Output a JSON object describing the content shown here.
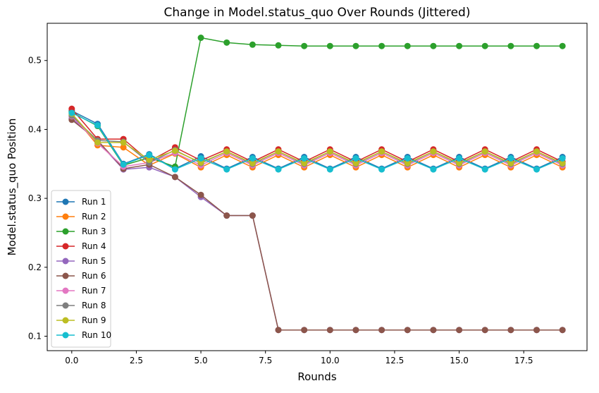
{
  "chart_data": {
    "type": "line",
    "title": "Change in Model.status_quo Over Rounds (Jittered)",
    "xlabel": "Rounds",
    "ylabel": "Model.status_quo Position",
    "xlim": [
      -0.95,
      19.95
    ],
    "ylim": [
      0.079,
      0.554
    ],
    "xticks": [
      0.0,
      2.5,
      5.0,
      7.5,
      10.0,
      12.5,
      15.0,
      17.5
    ],
    "xtick_labels": [
      "0.0",
      "2.5",
      "5.0",
      "7.5",
      "10.0",
      "12.5",
      "15.0",
      "17.5"
    ],
    "yticks": [
      0.1,
      0.2,
      0.3,
      0.4,
      0.5
    ],
    "ytick_labels": [
      "0.1",
      "0.2",
      "0.3",
      "0.4",
      "0.5"
    ],
    "grid": false,
    "legend_position": "lower-left",
    "x": [
      0,
      1,
      2,
      3,
      4,
      5,
      6,
      7,
      8,
      9,
      10,
      11,
      12,
      13,
      14,
      15,
      16,
      17,
      18,
      19
    ],
    "series": [
      {
        "name": "Run 1",
        "color": "#1f77b4",
        "values": [
          0.427,
          0.408,
          0.35,
          0.364,
          0.343,
          0.361,
          0.343,
          0.36,
          0.343,
          0.36,
          0.343,
          0.36,
          0.343,
          0.36,
          0.343,
          0.36,
          0.343,
          0.36,
          0.343,
          0.36
        ]
      },
      {
        "name": "Run 2",
        "color": "#ff7f0e",
        "values": [
          0.422,
          0.377,
          0.374,
          0.348,
          0.365,
          0.345,
          0.363,
          0.345,
          0.363,
          0.345,
          0.363,
          0.345,
          0.363,
          0.345,
          0.363,
          0.345,
          0.363,
          0.345,
          0.363,
          0.345
        ]
      },
      {
        "name": "Run 3",
        "color": "#2ca02c",
        "values": [
          0.425,
          0.405,
          0.348,
          0.359,
          0.346,
          0.533,
          0.526,
          0.523,
          0.522,
          0.521,
          0.521,
          0.521,
          0.521,
          0.521,
          0.521,
          0.521,
          0.521,
          0.521,
          0.521,
          0.521
        ]
      },
      {
        "name": "Run 4",
        "color": "#d62728",
        "values": [
          0.43,
          0.386,
          0.386,
          0.354,
          0.374,
          0.355,
          0.371,
          0.353,
          0.371,
          0.353,
          0.371,
          0.353,
          0.371,
          0.353,
          0.371,
          0.353,
          0.371,
          0.353,
          0.371,
          0.353
        ]
      },
      {
        "name": "Run 5",
        "color": "#9467bd",
        "values": [
          0.416,
          0.383,
          0.342,
          0.345,
          0.331,
          0.302,
          0.275,
          0.275,
          0.109,
          0.109,
          0.109,
          0.109,
          0.109,
          0.109,
          0.109,
          0.109,
          0.109,
          0.109,
          0.109,
          0.109
        ]
      },
      {
        "name": "Run 6",
        "color": "#8c564b",
        "values": [
          0.414,
          0.384,
          0.343,
          0.349,
          0.331,
          0.305,
          0.275,
          0.275,
          0.109,
          0.109,
          0.109,
          0.109,
          0.109,
          0.109,
          0.109,
          0.109,
          0.109,
          0.109,
          0.109,
          0.109
        ]
      },
      {
        "name": "Run 7",
        "color": "#e377c2",
        "values": [
          0.419,
          0.38,
          0.346,
          0.352,
          0.366,
          0.348,
          0.366,
          0.348,
          0.366,
          0.348,
          0.366,
          0.348,
          0.366,
          0.348,
          0.366,
          0.348,
          0.366,
          0.348,
          0.366,
          0.348
        ]
      },
      {
        "name": "Run 8",
        "color": "#7f7f7f",
        "values": [
          0.42,
          0.384,
          0.382,
          0.352,
          0.37,
          0.351,
          0.368,
          0.35,
          0.368,
          0.35,
          0.368,
          0.35,
          0.368,
          0.35,
          0.368,
          0.35,
          0.368,
          0.35,
          0.368,
          0.35
        ]
      },
      {
        "name": "Run 9",
        "color": "#bcbd22",
        "values": [
          0.423,
          0.381,
          0.381,
          0.356,
          0.369,
          0.352,
          0.368,
          0.351,
          0.368,
          0.351,
          0.368,
          0.351,
          0.368,
          0.351,
          0.368,
          0.351,
          0.368,
          0.351,
          0.368,
          0.351
        ]
      },
      {
        "name": "Run 10",
        "color": "#17becf",
        "values": [
          0.424,
          0.406,
          0.349,
          0.363,
          0.342,
          0.358,
          0.342,
          0.358,
          0.342,
          0.358,
          0.342,
          0.358,
          0.342,
          0.358,
          0.342,
          0.358,
          0.342,
          0.358,
          0.342,
          0.358
        ]
      }
    ]
  }
}
